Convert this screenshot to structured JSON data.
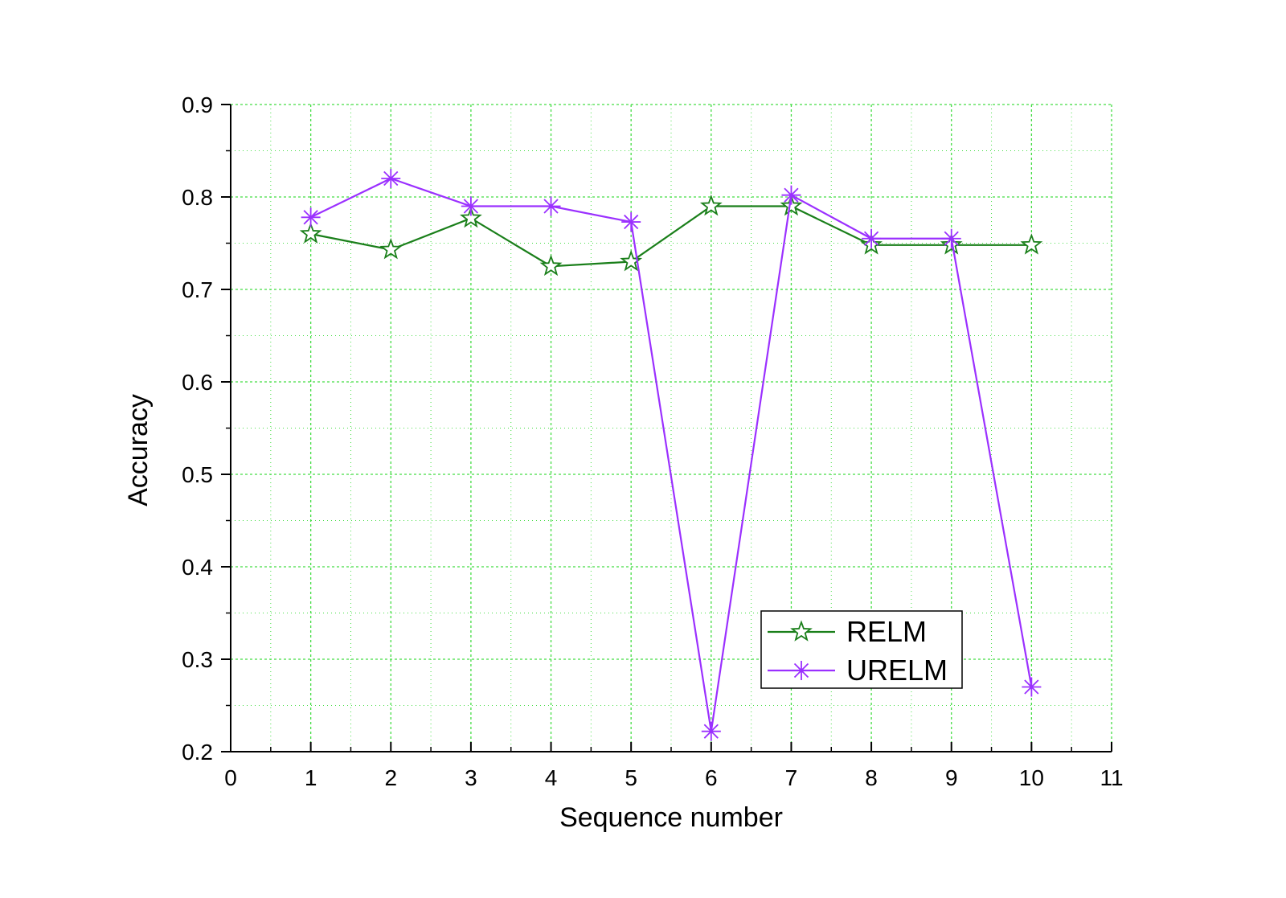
{
  "chart_data": {
    "type": "line",
    "title": "",
    "xlabel": "Sequence number",
    "ylabel": "Accuracy",
    "xlim": [
      0,
      11
    ],
    "ylim": [
      0.2,
      0.9
    ],
    "x_ticks": [
      0,
      1,
      2,
      3,
      4,
      5,
      6,
      7,
      8,
      9,
      10,
      11
    ],
    "y_ticks": [
      0.2,
      0.3,
      0.4,
      0.5,
      0.6,
      0.7,
      0.8,
      0.9
    ],
    "x_tick_labels": [
      "0",
      "1",
      "2",
      "3",
      "4",
      "5",
      "6",
      "7",
      "8",
      "9",
      "10",
      "11"
    ],
    "y_tick_labels": [
      "0.2",
      "0.3",
      "0.4",
      "0.5",
      "0.6",
      "0.7",
      "0.8",
      "0.9"
    ],
    "grid": true,
    "grid_color": "#44dd44",
    "legend_position": "bottom-right",
    "x": [
      1,
      2,
      3,
      4,
      5,
      6,
      7,
      8,
      9,
      10
    ],
    "series": [
      {
        "name": "RELM",
        "marker": "star",
        "color": "#1a7f1a",
        "values": [
          0.76,
          0.743,
          0.777,
          0.725,
          0.73,
          0.79,
          0.79,
          0.748,
          0.748,
          0.748
        ]
      },
      {
        "name": "URELM",
        "marker": "asterisk",
        "color": "#9b30ff",
        "values": [
          0.778,
          0.82,
          0.79,
          0.79,
          0.773,
          0.222,
          0.802,
          0.755,
          0.755,
          0.27
        ]
      }
    ]
  }
}
